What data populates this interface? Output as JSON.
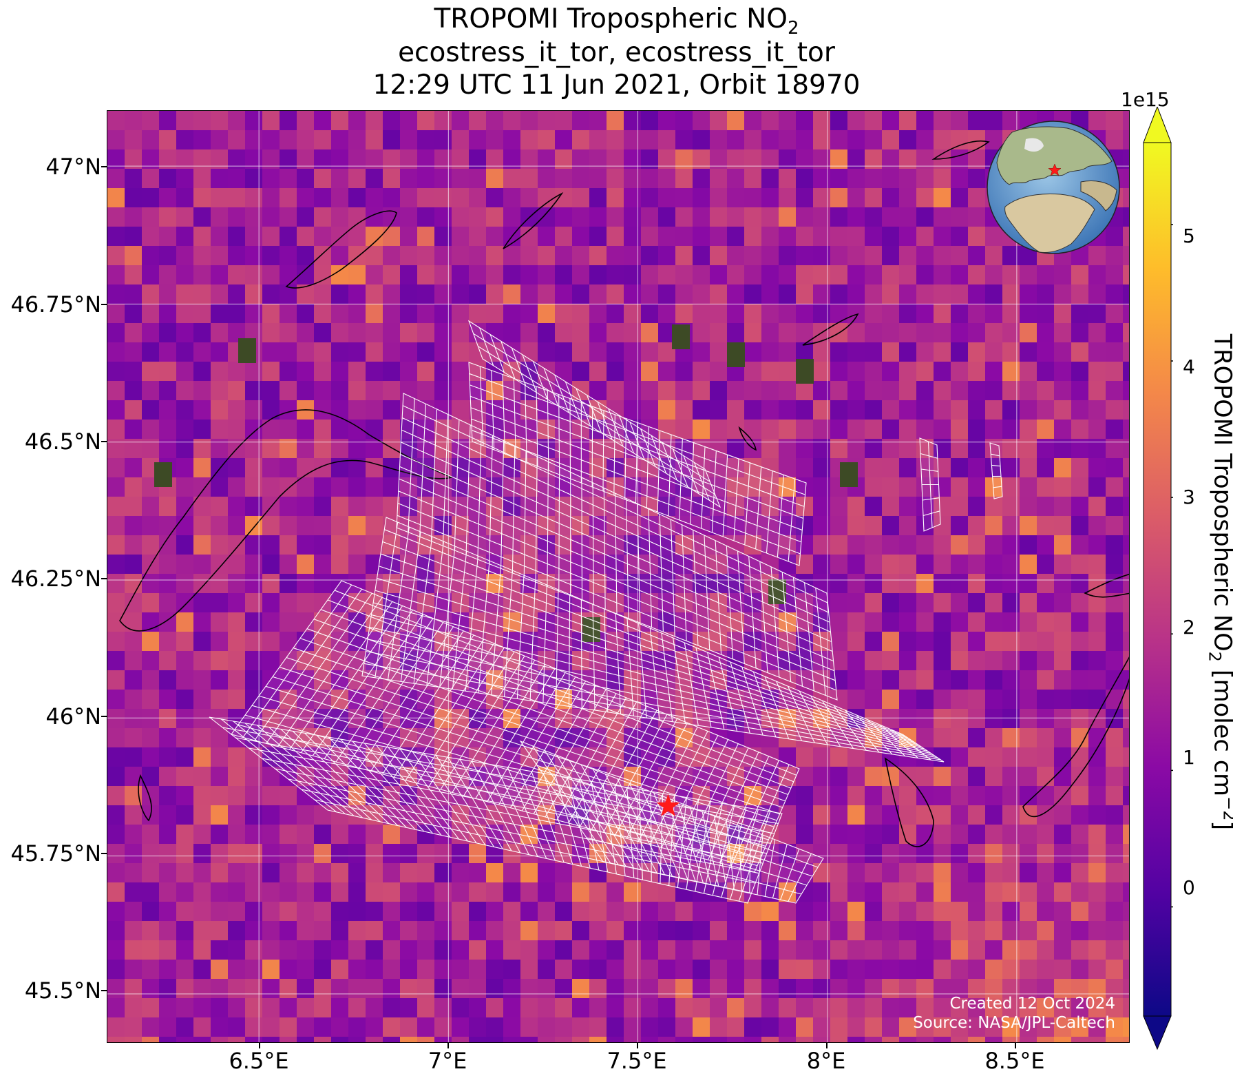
{
  "title": {
    "line1": "TROPOMI Tropospheric NO",
    "line1_sub": "2",
    "line2": "ecostress_it_tor, ecostress_it_tor",
    "line3": "12:29 UTC 11 Jun 2021, Orbit 18970"
  },
  "axes": {
    "y_ticks": [
      "47°N",
      "46.75°N",
      "46.5°N",
      "46.25°N",
      "46°N",
      "45.75°N",
      "45.5°N"
    ],
    "x_ticks": [
      "6.5°E",
      "7°E",
      "7.5°E",
      "8°E",
      "8.5°E"
    ],
    "grid": true
  },
  "map_data": {
    "extent": {
      "lon_min": 6.1,
      "lon_max": 8.8,
      "lat_min": 45.41,
      "lat_max": 47.1
    },
    "site_marker": {
      "lon": 7.58,
      "lat": 45.84,
      "symbol": "star",
      "color": "#ff1a1a"
    },
    "overlay": "ECOSTRESS footprint grid (white quadrilateral mesh)",
    "background_field": "TROPOMI tropospheric NO2 pixels, plasma colormap"
  },
  "colorbar": {
    "label": "TROPOMI Tropospheric NO",
    "label_sub": "2",
    "label_units": " [molec cm",
    "label_units_sup": "−2",
    "label_end": "]",
    "exponent": "1e15",
    "ticks": [
      "5",
      "4",
      "3",
      "2",
      "1",
      "0"
    ],
    "colormap": "plasma",
    "range": [
      -0.8,
      5.6
    ],
    "colors": [
      "#0d0887",
      "#5302a3",
      "#8b0aa5",
      "#b83289",
      "#db5c68",
      "#f48849",
      "#febd2a",
      "#f0f921"
    ]
  },
  "credits": {
    "line1": "Created 12 Oct 2024",
    "line2": "Source: NASA/JPL-Caltech"
  },
  "inset_globe": {
    "marker": "red star over northern Italy"
  }
}
